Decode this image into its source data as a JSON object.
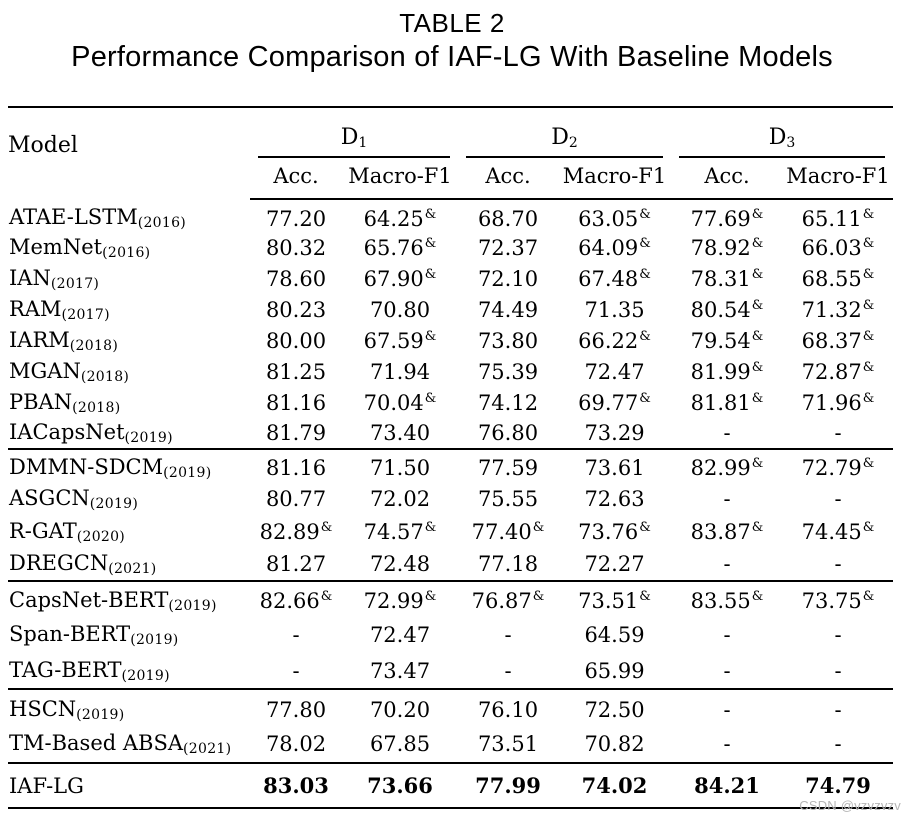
{
  "title": {
    "label": "TABLE 2",
    "caption": "Performance Comparison of IAF-LG With Baseline Models"
  },
  "table": {
    "model_header": "Model",
    "amp_symbol": "&",
    "dash": "-",
    "dataset_groups": [
      {
        "base": "D",
        "sub": "1"
      },
      {
        "base": "D",
        "sub": "2"
      },
      {
        "base": "D",
        "sub": "3"
      }
    ],
    "metric_headers": [
      "Acc.",
      "Macro-F1",
      "Acc.",
      "Macro-F1",
      "Acc.",
      "Macro-F1"
    ],
    "groups": [
      {
        "rows": [
          {
            "model": "ATAE-LSTM",
            "year": "(2016)",
            "cells": [
              {
                "v": "77.20"
              },
              {
                "v": "64.25",
                "amp": true
              },
              {
                "v": "68.70"
              },
              {
                "v": "63.05",
                "amp": true
              },
              {
                "v": "77.69",
                "amp": true
              },
              {
                "v": "65.11",
                "amp": true
              }
            ]
          },
          {
            "model": "MemNet",
            "year": "(2016)",
            "cells": [
              {
                "v": "80.32"
              },
              {
                "v": "65.76",
                "amp": true
              },
              {
                "v": "72.37"
              },
              {
                "v": "64.09",
                "amp": true
              },
              {
                "v": "78.92",
                "amp": true
              },
              {
                "v": "66.03",
                "amp": true
              }
            ]
          },
          {
            "model": "IAN",
            "year": "(2017)",
            "cells": [
              {
                "v": "78.60"
              },
              {
                "v": "67.90",
                "amp": true
              },
              {
                "v": "72.10"
              },
              {
                "v": "67.48",
                "amp": true
              },
              {
                "v": "78.31",
                "amp": true
              },
              {
                "v": "68.55",
                "amp": true
              }
            ]
          },
          {
            "model": "RAM",
            "year": "(2017)",
            "cells": [
              {
                "v": "80.23"
              },
              {
                "v": "70.80"
              },
              {
                "v": "74.49"
              },
              {
                "v": "71.35"
              },
              {
                "v": "80.54",
                "amp": true
              },
              {
                "v": "71.32",
                "amp": true
              }
            ]
          },
          {
            "model": "IARM",
            "year": "(2018)",
            "cells": [
              {
                "v": "80.00"
              },
              {
                "v": "67.59",
                "amp": true
              },
              {
                "v": "73.80"
              },
              {
                "v": "66.22",
                "amp": true
              },
              {
                "v": "79.54",
                "amp": true
              },
              {
                "v": "68.37",
                "amp": true
              }
            ]
          },
          {
            "model": "MGAN",
            "year": "(2018)",
            "cells": [
              {
                "v": "81.25"
              },
              {
                "v": "71.94"
              },
              {
                "v": "75.39"
              },
              {
                "v": "72.47"
              },
              {
                "v": "81.99",
                "amp": true
              },
              {
                "v": "72.87",
                "amp": true
              }
            ]
          },
          {
            "model": "PBAN",
            "year": "(2018)",
            "cells": [
              {
                "v": "81.16"
              },
              {
                "v": "70.04",
                "amp": true
              },
              {
                "v": "74.12"
              },
              {
                "v": "69.77",
                "amp": true
              },
              {
                "v": "81.81",
                "amp": true
              },
              {
                "v": "71.96",
                "amp": true
              }
            ]
          },
          {
            "model": "IACapsNet",
            "year": "(2019)",
            "cells": [
              {
                "v": "81.79"
              },
              {
                "v": "73.40"
              },
              {
                "v": "76.80"
              },
              {
                "v": "73.29"
              },
              {
                "v": "-"
              },
              {
                "v": "-"
              }
            ]
          }
        ]
      },
      {
        "rows": [
          {
            "model": "DMMN-SDCM",
            "year": "(2019)",
            "cells": [
              {
                "v": "81.16"
              },
              {
                "v": "71.50"
              },
              {
                "v": "77.59"
              },
              {
                "v": "73.61"
              },
              {
                "v": "82.99",
                "amp": true
              },
              {
                "v": "72.79",
                "amp": true
              }
            ]
          },
          {
            "model": "ASGCN",
            "year": "(2019)",
            "cells": [
              {
                "v": "80.77"
              },
              {
                "v": "72.02"
              },
              {
                "v": "75.55"
              },
              {
                "v": "72.63"
              },
              {
                "v": "-"
              },
              {
                "v": "-"
              }
            ]
          },
          {
            "model": "R-GAT",
            "year": "(2020)",
            "cells": [
              {
                "v": "82.89",
                "amp": true
              },
              {
                "v": "74.57",
                "amp": true
              },
              {
                "v": "77.40",
                "amp": true
              },
              {
                "v": "73.76",
                "amp": true
              },
              {
                "v": "83.87",
                "amp": true
              },
              {
                "v": "74.45",
                "amp": true
              }
            ]
          },
          {
            "model": "DREGCN",
            "year": "(2021)",
            "cells": [
              {
                "v": "81.27"
              },
              {
                "v": "72.48"
              },
              {
                "v": "77.18"
              },
              {
                "v": "72.27"
              },
              {
                "v": "-"
              },
              {
                "v": "-"
              }
            ]
          }
        ]
      },
      {
        "rows": [
          {
            "model": "CapsNet-BERT",
            "year": "(2019)",
            "cells": [
              {
                "v": "82.66",
                "amp": true
              },
              {
                "v": "72.99",
                "amp": true
              },
              {
                "v": "76.87",
                "amp": true
              },
              {
                "v": "73.51",
                "amp": true
              },
              {
                "v": "83.55",
                "amp": true
              },
              {
                "v": "73.75",
                "amp": true
              }
            ]
          },
          {
            "model": "Span-BERT",
            "year": "(2019)",
            "cells": [
              {
                "v": "-"
              },
              {
                "v": "72.47"
              },
              {
                "v": "-"
              },
              {
                "v": "64.59"
              },
              {
                "v": "-"
              },
              {
                "v": "-"
              }
            ]
          },
          {
            "model": "TAG-BERT",
            "year": "(2019)",
            "cells": [
              {
                "v": "-"
              },
              {
                "v": "73.47"
              },
              {
                "v": "-"
              },
              {
                "v": "65.99"
              },
              {
                "v": "-"
              },
              {
                "v": "-"
              }
            ]
          }
        ]
      },
      {
        "rows": [
          {
            "model": "HSCN",
            "year": "(2019)",
            "cells": [
              {
                "v": "77.80"
              },
              {
                "v": "70.20"
              },
              {
                "v": "76.10"
              },
              {
                "v": "72.50"
              },
              {
                "v": "-"
              },
              {
                "v": "-"
              }
            ]
          },
          {
            "model": "TM-Based ABSA",
            "year": "(2021)",
            "cells": [
              {
                "v": "78.02"
              },
              {
                "v": "67.85"
              },
              {
                "v": "73.51"
              },
              {
                "v": "70.82"
              },
              {
                "v": "-"
              },
              {
                "v": "-"
              }
            ]
          }
        ]
      }
    ],
    "final_row": {
      "model": "IAF-LG",
      "year": "",
      "cells": [
        {
          "v": "83.03"
        },
        {
          "v": "73.66"
        },
        {
          "v": "77.99"
        },
        {
          "v": "74.02"
        },
        {
          "v": "84.21"
        },
        {
          "v": "74.79"
        }
      ]
    }
  },
  "watermark": "CSDN @vzvzvzv",
  "colors": {
    "text": "#000000",
    "rule": "#000000",
    "watermark": "#b5b5b5"
  }
}
